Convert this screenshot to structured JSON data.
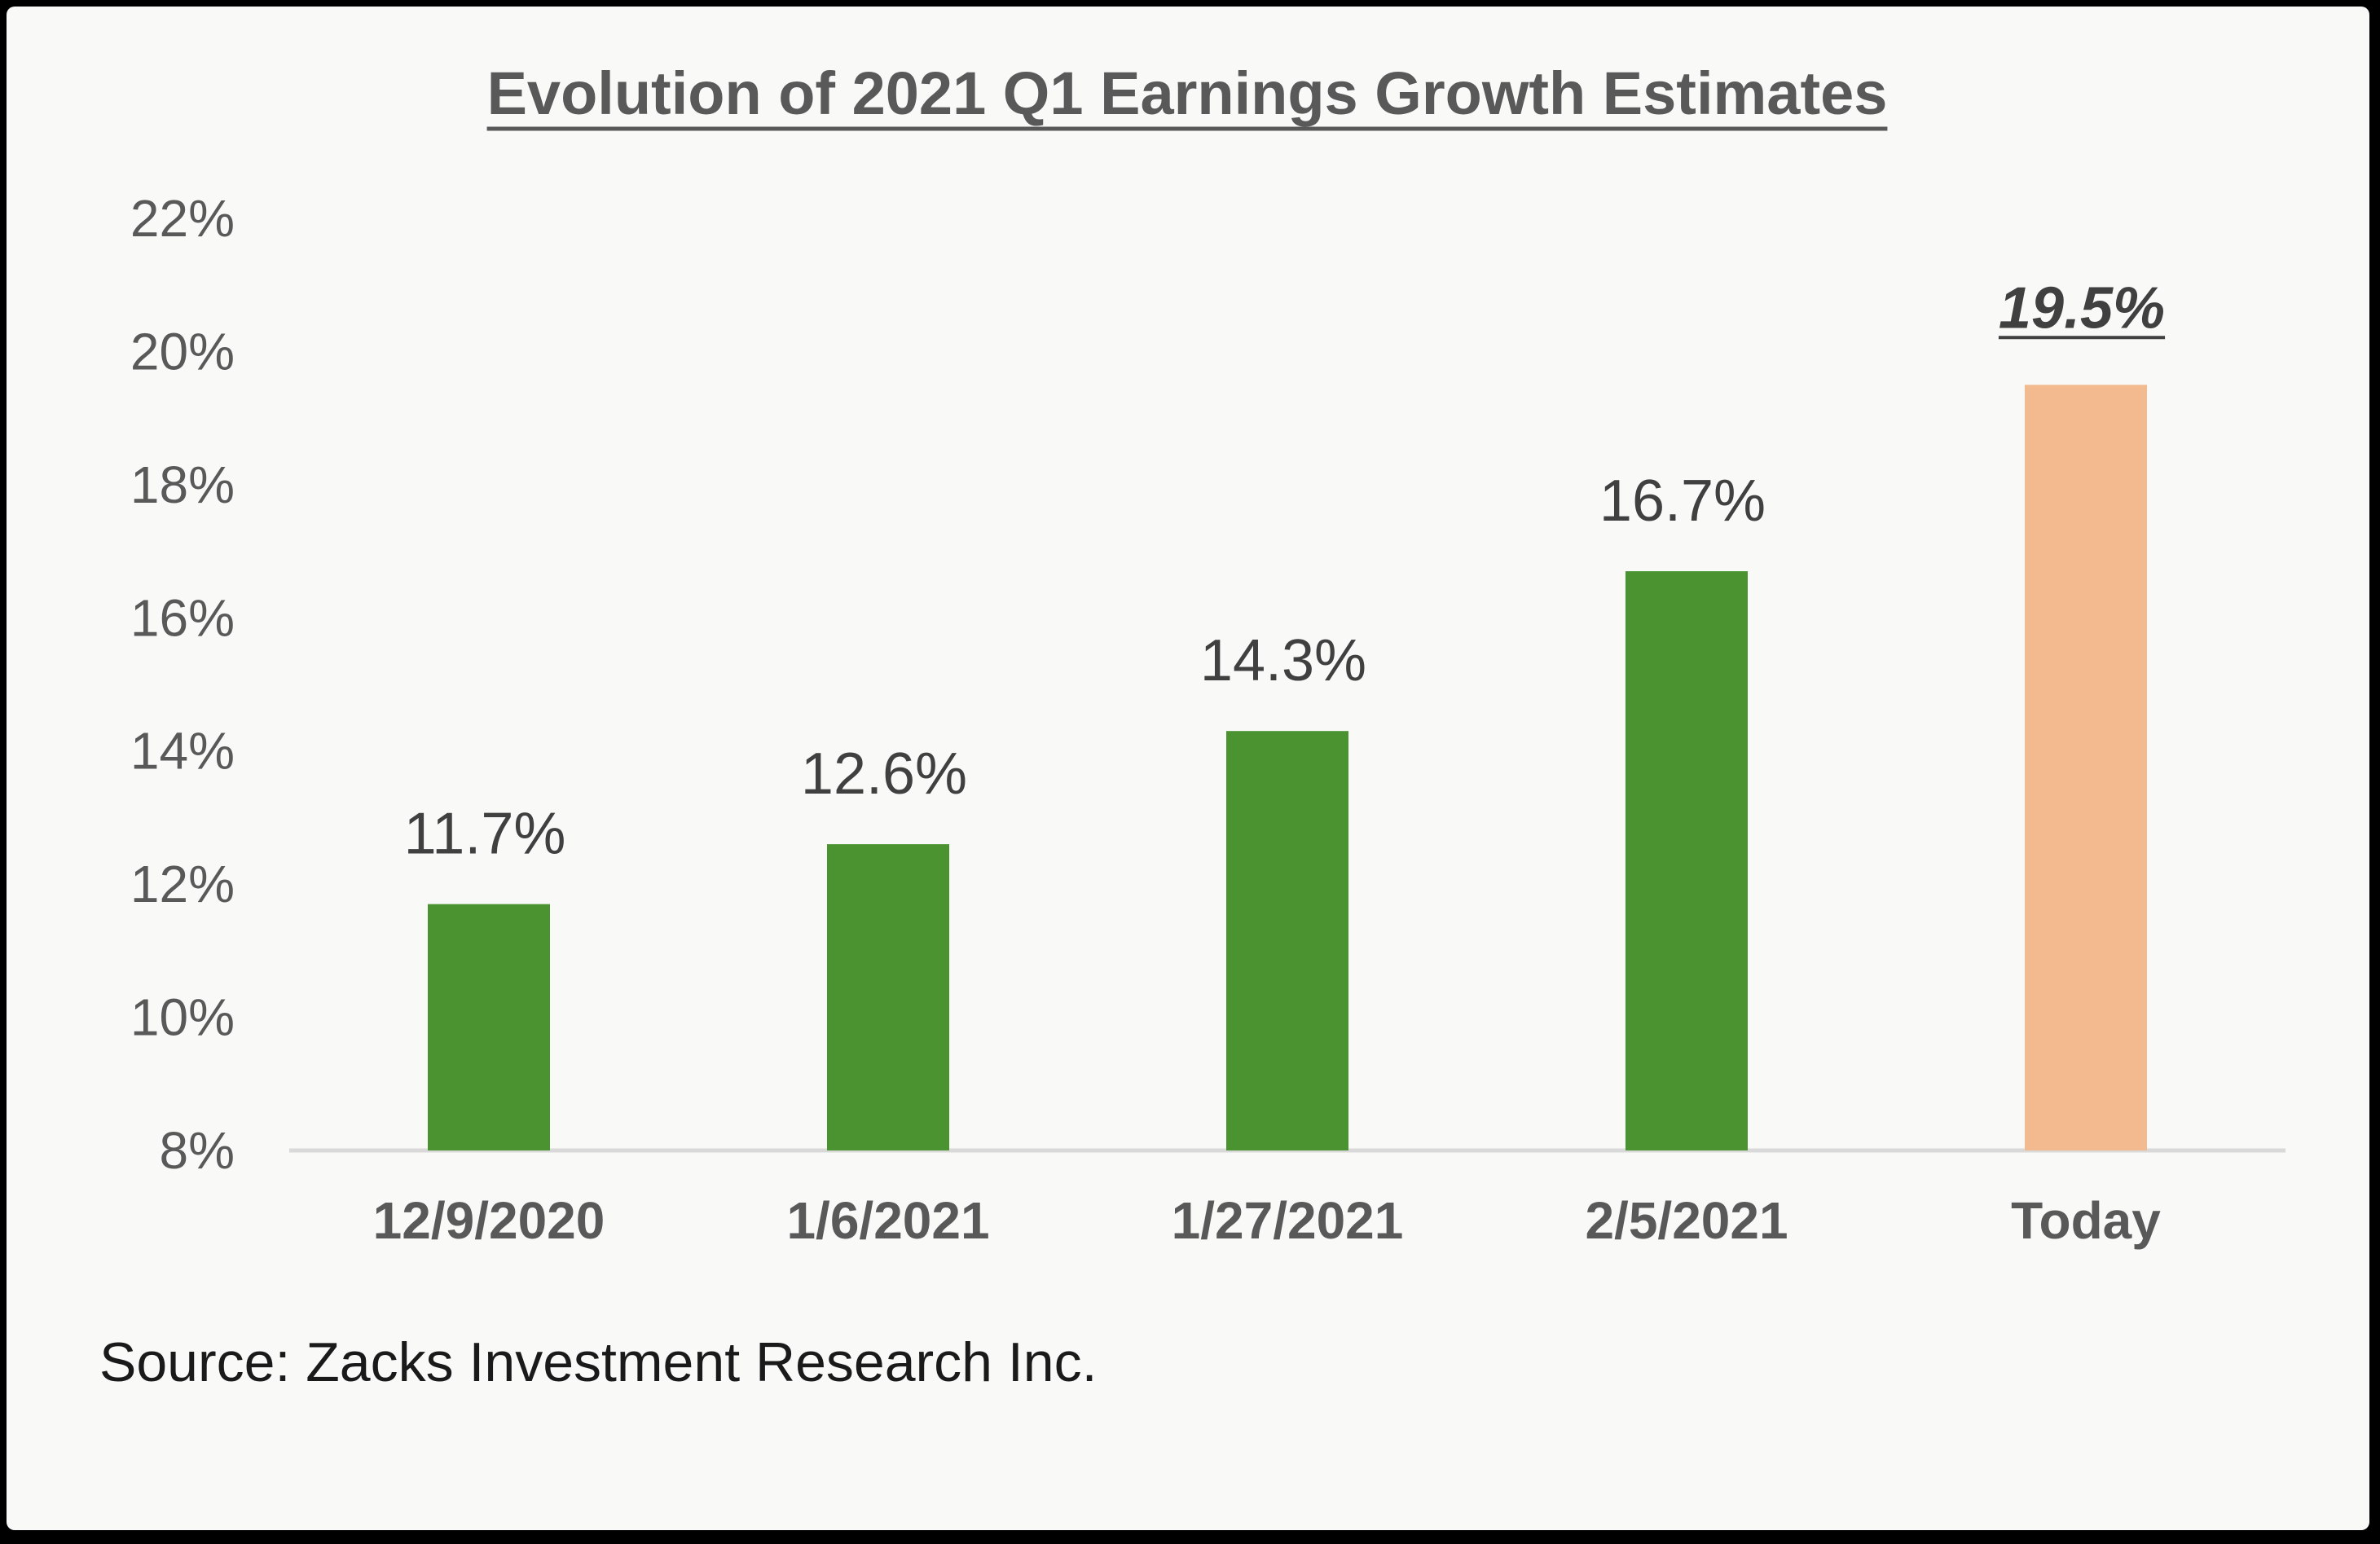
{
  "chart_data": {
    "type": "bar",
    "title": "Evolution of 2021 Q1 Earnings Growth Estimates",
    "categories": [
      "12/9/2020",
      "1/6/2021",
      "1/27/2021",
      "2/5/2021",
      "Today"
    ],
    "values": [
      11.7,
      12.6,
      14.3,
      16.7,
      19.5
    ],
    "data_labels": [
      "11.7%",
      "12.6%",
      "14.3%",
      "16.7%",
      "19.5%"
    ],
    "highlight_index": 4,
    "ylim": [
      8,
      22
    ],
    "yticks": [
      8,
      10,
      12,
      14,
      16,
      18,
      20,
      22
    ],
    "ytick_labels": [
      "8%",
      "10%",
      "12%",
      "14%",
      "16%",
      "18%",
      "20%",
      "22%"
    ],
    "xlabel": "",
    "ylabel": "",
    "grid": false,
    "legend": "none",
    "colors": {
      "bar": "#4a9330",
      "highlight_bar": "#f3b98f",
      "text": "#595959",
      "label": "#404040"
    }
  },
  "source": "Source: Zacks Investment Research Inc."
}
